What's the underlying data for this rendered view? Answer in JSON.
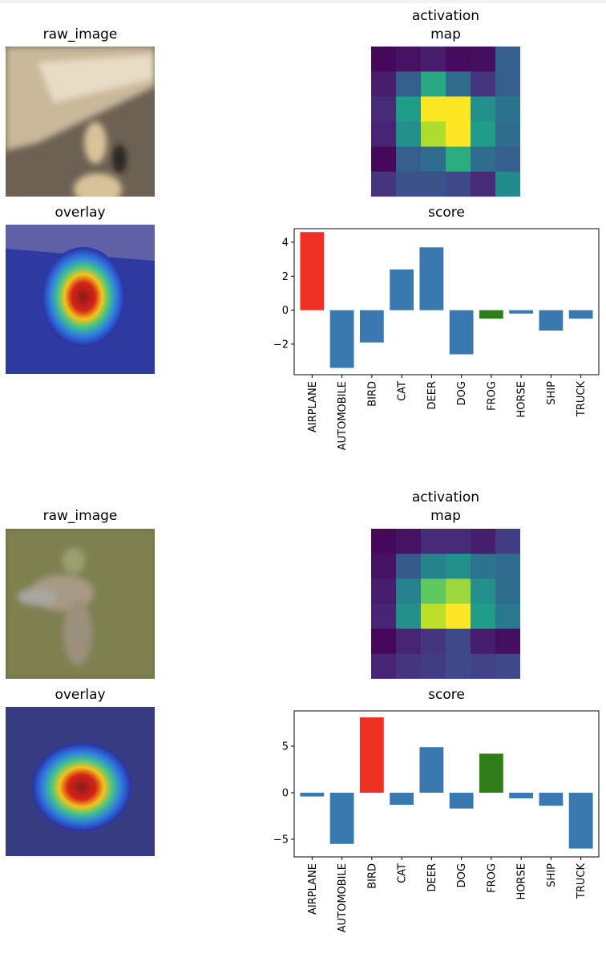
{
  "panels": [
    {
      "raw_title": "raw_image",
      "act_title_line1": "activation",
      "act_title_line2": "map",
      "overlay_title": "overlay",
      "score_title": "score",
      "raw_image_palette": {
        "sky": "#c9b89a",
        "ground": "#6d6154",
        "object": "#d8c29a",
        "shadow": "#2b2621"
      },
      "activation_grid": [
        [
          0.02,
          0.05,
          0.08,
          0.03,
          0.04,
          0.3
        ],
        [
          0.08,
          0.3,
          0.6,
          0.35,
          0.15,
          0.3
        ],
        [
          0.12,
          0.55,
          1.0,
          1.0,
          0.5,
          0.38
        ],
        [
          0.1,
          0.5,
          0.88,
          1.0,
          0.55,
          0.35
        ],
        [
          0.02,
          0.3,
          0.35,
          0.62,
          0.35,
          0.3
        ],
        [
          0.15,
          0.25,
          0.25,
          0.22,
          0.12,
          0.48
        ]
      ],
      "chart_data": {
        "type": "bar",
        "title": "score",
        "categories": [
          "AIRPLANE",
          "AUTOMOBILE",
          "BIRD",
          "CAT",
          "DEER",
          "DOG",
          "FROG",
          "HORSE",
          "SHIP",
          "TRUCK"
        ],
        "values": [
          4.6,
          -3.4,
          -1.9,
          2.4,
          3.7,
          -2.6,
          -0.5,
          -0.2,
          -1.2,
          -0.5
        ],
        "bar_colors": [
          "#ee3124",
          "#3a78b0",
          "#3a78b0",
          "#3a78b0",
          "#3a78b0",
          "#3a78b0",
          "#2e7d18",
          "#3a78b0",
          "#3a78b0",
          "#3a78b0"
        ],
        "ylim": [
          -3.8,
          4.8
        ],
        "yticks": [
          -2,
          0,
          2,
          4
        ],
        "ytick_labels": [
          "−2",
          "0",
          "2",
          "4"
        ]
      }
    },
    {
      "raw_title": "raw_image",
      "act_title_line1": "activation",
      "act_title_line2": "map",
      "overlay_title": "overlay",
      "score_title": "score",
      "raw_image_palette": {
        "sky": "#7e8050",
        "ground": "#6f7048",
        "object": "#a89a84",
        "shadow": "#4c4a38"
      },
      "activation_grid": [
        [
          0.02,
          0.05,
          0.12,
          0.12,
          0.08,
          0.18
        ],
        [
          0.05,
          0.28,
          0.45,
          0.5,
          0.38,
          0.35
        ],
        [
          0.08,
          0.45,
          0.75,
          0.85,
          0.5,
          0.35
        ],
        [
          0.1,
          0.5,
          0.9,
          1.0,
          0.55,
          0.4
        ],
        [
          0.02,
          0.1,
          0.15,
          0.22,
          0.08,
          0.04
        ],
        [
          0.1,
          0.15,
          0.18,
          0.22,
          0.2,
          0.22
        ]
      ],
      "chart_data": {
        "type": "bar",
        "title": "score",
        "categories": [
          "AIRPLANE",
          "AUTOMOBILE",
          "BIRD",
          "CAT",
          "DEER",
          "DOG",
          "FROG",
          "HORSE",
          "SHIP",
          "TRUCK"
        ],
        "values": [
          -0.4,
          -5.5,
          8.1,
          -1.3,
          4.9,
          -1.7,
          4.2,
          -0.6,
          -1.4,
          -6.0
        ],
        "bar_colors": [
          "#3a78b0",
          "#3a78b0",
          "#ee3124",
          "#3a78b0",
          "#3a78b0",
          "#3a78b0",
          "#2e7d18",
          "#3a78b0",
          "#3a78b0",
          "#3a78b0"
        ],
        "ylim": [
          -6.9,
          8.8
        ],
        "yticks": [
          -5,
          0,
          5
        ],
        "ytick_labels": [
          "−5",
          "0",
          "5"
        ]
      }
    }
  ]
}
